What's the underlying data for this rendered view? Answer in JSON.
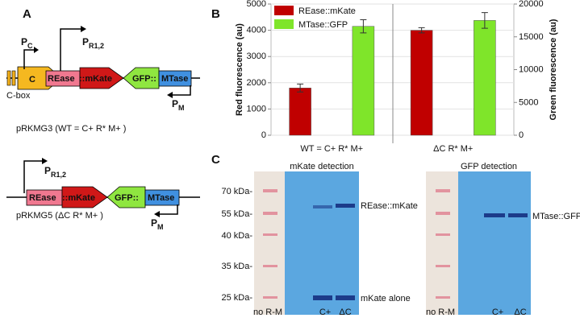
{
  "panels": {
    "a": "A",
    "b": "B",
    "c": "C"
  },
  "diagram": {
    "construct1": {
      "cbox": "C-box",
      "c_gene": "C",
      "pc": {
        "main": "P",
        "sub": "C"
      },
      "pr": {
        "main": "P",
        "sub": "R1,2"
      },
      "rease": "REase",
      "mkate": "::mKate",
      "gfp": "GFP::",
      "mtase": "MTase",
      "pm": {
        "main": "P",
        "sub": "M"
      },
      "caption": "pRKMG3  (WT = C+ R* M+ )"
    },
    "construct2": {
      "pr": {
        "main": "P",
        "sub": "R1,2"
      },
      "rease": "REase",
      "mkate": "::mKate",
      "gfp": "GFP::",
      "mtase": "MTase",
      "pm": {
        "main": "P",
        "sub": "M"
      },
      "caption": "pRKMG5  (ΔC R* M+ )"
    }
  },
  "chart_data": {
    "type": "bar",
    "categories": [
      "WT = C+ R* M+",
      "ΔC R* M+"
    ],
    "series": [
      {
        "name": "REase::mKate",
        "color": "#c00000",
        "values": [
          1800,
          4000
        ],
        "errors": [
          150,
          100
        ],
        "axis": "y"
      },
      {
        "name": "MTase::GFP",
        "color": "#7fe52a",
        "values": [
          16600,
          17500
        ],
        "errors": [
          1000,
          1200
        ],
        "axis": "y2"
      }
    ],
    "ylabel": "Red fluorescence  (au)",
    "y2label": "Green fluorescence (au)",
    "ylim": [
      0,
      5000
    ],
    "yticks": [
      0,
      1000,
      2000,
      3000,
      4000,
      5000
    ],
    "y2lim": [
      0,
      20000
    ],
    "y2ticks": [
      0,
      5000,
      10000,
      15000,
      20000
    ],
    "grid": true,
    "legend": "upper left"
  },
  "blots": [
    {
      "title": "mKate detection",
      "ladder": [
        "70 kDa-",
        "55 kDa-",
        "40 kDa-",
        "35 kDa-",
        "25 kDa-"
      ],
      "bands": [
        "REase::mKate",
        "mKate alone"
      ],
      "lanes": [
        "no R-M",
        "C+",
        "ΔC"
      ]
    },
    {
      "title": "GFP detection",
      "bands": [
        "MTase::GFP"
      ],
      "lanes": [
        "no R-M",
        "C+",
        "ΔC"
      ]
    }
  ]
}
